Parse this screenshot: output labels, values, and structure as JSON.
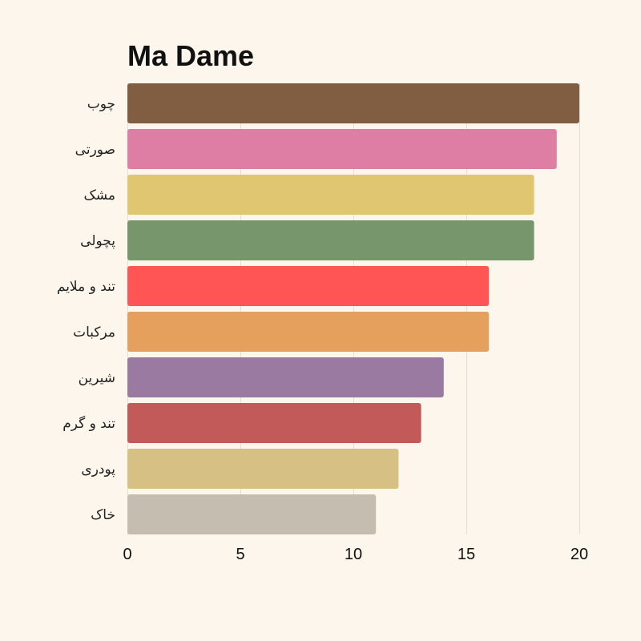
{
  "chart_data": {
    "type": "bar",
    "orientation": "horizontal",
    "title": "Ma Dame",
    "xlabel": "",
    "ylabel": "",
    "categories": [
      "چوب",
      "صورتی",
      "مشک",
      "پچولی",
      "تند و ملایم",
      "مرکبات",
      "شیرین",
      "تند و گرم",
      "پودری",
      "خاک"
    ],
    "values": [
      20,
      19,
      18,
      18,
      16,
      16,
      14,
      13,
      12,
      11
    ],
    "colors": [
      "#815e42",
      "#de7ea4",
      "#e0c671",
      "#78966b",
      "#ff5555",
      "#e6a05e",
      "#9a7aa0",
      "#c35a5a",
      "#d6c083",
      "#c5beb0"
    ],
    "xlim": [
      0,
      20
    ],
    "xticks": [
      0,
      5,
      10,
      15,
      20
    ],
    "grid": true,
    "legend": "none"
  }
}
